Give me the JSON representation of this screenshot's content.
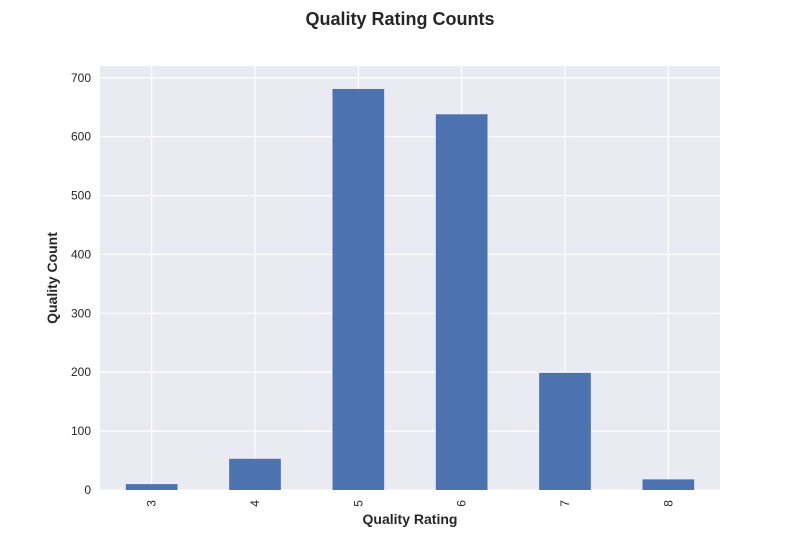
{
  "chart_data": {
    "type": "bar",
    "title": "Quality Rating Counts",
    "xlabel": "Quality Rating",
    "ylabel": "Quality Count",
    "categories": [
      "3",
      "4",
      "5",
      "6",
      "7",
      "8"
    ],
    "values": [
      10,
      53,
      681,
      638,
      199,
      18
    ],
    "ylim": [
      0,
      720
    ],
    "yticks": [
      "0",
      "100",
      "200",
      "300",
      "400",
      "500",
      "600",
      "700"
    ],
    "grid": true,
    "x_tick_rotation": "vertical",
    "colors": {
      "bar": "#4c72b0",
      "plot_background": "#eaeaf2",
      "grid": "#ffffff",
      "text": "#262626"
    }
  }
}
